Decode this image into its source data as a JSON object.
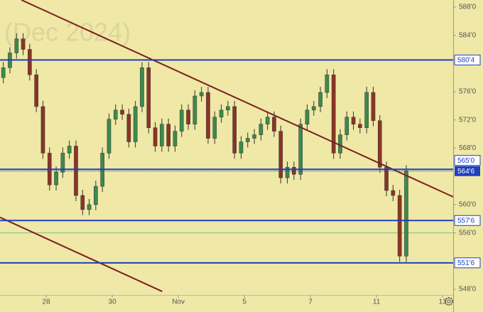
{
  "chart_data": {
    "type": "candlestick",
    "watermark": "(Dec 2024)",
    "xlim": [
      -1.4,
      12.32
    ],
    "xticks": [
      {
        "value": 0,
        "label": "28"
      },
      {
        "value": 2,
        "label": "30"
      },
      {
        "value": 4,
        "label": "Nov"
      },
      {
        "value": 6,
        "label": "5"
      },
      {
        "value": 8,
        "label": "7"
      },
      {
        "value": 10,
        "label": "11"
      },
      {
        "value": 12,
        "label": "13"
      }
    ],
    "ylim": [
      547.2,
      589.0
    ],
    "yticks": [
      {
        "value": 588,
        "label": "588'0"
      },
      {
        "value": 584,
        "label": "584'0"
      },
      {
        "value": 576,
        "label": "576'0"
      },
      {
        "value": 572,
        "label": "572'0"
      },
      {
        "value": 568,
        "label": "568'0"
      },
      {
        "value": 560,
        "label": "560'0"
      },
      {
        "value": 556,
        "label": "556'0"
      },
      {
        "value": 548,
        "label": "548'0"
      }
    ],
    "up_color": "#3d8a4e",
    "down_color": "#8a3526",
    "x": [
      -1.3,
      -1.1,
      -0.9,
      -0.7,
      -0.5,
      -0.3,
      -0.1,
      0.1,
      0.3,
      0.5,
      0.7,
      0.9,
      1.1,
      1.3,
      1.5,
      1.7,
      1.9,
      2.1,
      2.3,
      2.5,
      2.7,
      2.9,
      3.1,
      3.3,
      3.5,
      3.7,
      3.9,
      4.1,
      4.3,
      4.5,
      4.7,
      4.9,
      5.1,
      5.3,
      5.5,
      5.7,
      5.9,
      6.1,
      6.3,
      6.5,
      6.7,
      6.9,
      7.1,
      7.3,
      7.5,
      7.7,
      7.9,
      8.1,
      8.3,
      8.5,
      8.7,
      8.9,
      9.1,
      9.3,
      9.5,
      9.7,
      9.9,
      10.1,
      10.3,
      10.5,
      10.7,
      10.9
    ],
    "open": [
      578.0,
      579.4,
      581.5,
      583.5,
      582.0,
      578.4,
      573.9,
      567.3,
      562.8,
      564.6,
      567.3,
      568.3,
      561.3,
      559.3,
      560.0,
      562.6,
      567.3,
      572.1,
      573.4,
      572.8,
      568.9,
      573.9,
      579.4,
      570.9,
      568.3,
      571.4,
      568.3,
      570.4,
      573.4,
      571.4,
      575.4,
      575.9,
      569.4,
      572.4,
      573.4,
      573.9,
      567.3,
      568.9,
      569.4,
      569.9,
      571.4,
      572.4,
      570.4,
      563.8,
      565.3,
      564.3,
      571.4,
      573.4,
      573.9,
      575.9,
      578.4,
      567.3,
      569.9,
      572.4,
      571.4,
      570.9,
      575.9,
      571.9,
      565.3,
      562.0,
      561.3,
      552.7
    ],
    "high": [
      580.2,
      582.3,
      584.3,
      584.3,
      582.8,
      579.2,
      574.7,
      568.1,
      565.4,
      568.1,
      569.1,
      569.1,
      562.1,
      560.8,
      563.4,
      568.1,
      572.9,
      574.2,
      574.2,
      573.6,
      574.7,
      580.2,
      580.2,
      571.7,
      572.2,
      572.2,
      571.2,
      574.2,
      574.2,
      576.2,
      576.7,
      576.7,
      573.2,
      574.2,
      574.7,
      574.7,
      569.7,
      570.2,
      570.7,
      572.2,
      573.2,
      573.2,
      571.2,
      566.1,
      566.1,
      572.2,
      574.2,
      574.7,
      576.7,
      579.2,
      579.2,
      570.7,
      573.2,
      573.2,
      572.2,
      576.7,
      576.7,
      572.7,
      566.1,
      562.8,
      562.1,
      565.6
    ],
    "low": [
      577.2,
      578.6,
      580.7,
      581.2,
      577.6,
      573.1,
      566.5,
      562.0,
      562.0,
      563.8,
      566.5,
      560.5,
      558.5,
      558.5,
      559.2,
      561.8,
      566.5,
      571.3,
      572.0,
      568.1,
      568.1,
      573.1,
      570.1,
      567.5,
      567.5,
      567.5,
      567.5,
      569.6,
      570.6,
      570.6,
      574.6,
      568.6,
      568.6,
      571.6,
      572.6,
      566.5,
      566.5,
      568.1,
      568.6,
      569.1,
      570.6,
      569.6,
      563.0,
      563.0,
      563.5,
      563.5,
      570.6,
      572.6,
      573.1,
      575.1,
      566.5,
      566.5,
      569.1,
      570.6,
      570.1,
      570.1,
      571.1,
      564.5,
      561.2,
      560.5,
      551.9,
      551.9
    ],
    "close": [
      579.4,
      581.5,
      583.5,
      582.0,
      578.4,
      573.9,
      567.3,
      562.8,
      564.6,
      567.3,
      568.3,
      561.3,
      559.3,
      560.0,
      562.6,
      567.3,
      572.1,
      573.4,
      572.8,
      568.9,
      573.9,
      579.4,
      570.9,
      568.3,
      571.4,
      568.3,
      570.4,
      573.4,
      571.4,
      575.4,
      575.9,
      569.4,
      572.4,
      573.4,
      573.9,
      567.3,
      568.9,
      569.4,
      569.9,
      571.4,
      572.4,
      570.4,
      563.8,
      565.3,
      564.3,
      571.4,
      573.4,
      573.9,
      575.9,
      578.4,
      567.3,
      569.9,
      572.4,
      571.4,
      570.9,
      575.9,
      571.9,
      565.3,
      562.0,
      561.3,
      552.7,
      564.8
    ],
    "levels": [
      {
        "value": 580.5,
        "label": "580'4",
        "color": "#1f3fbf"
      },
      {
        "value": 565,
        "label": "565'0",
        "color": "#1f3fbf"
      },
      {
        "value": 557.75,
        "label": "557'6",
        "color": "#1f3fbf"
      },
      {
        "value": 551.75,
        "label": "551'6",
        "color": "#1f3fbf"
      }
    ],
    "current_price": {
      "value": 564.75,
      "label": "564'6",
      "color": "#1f3fbf"
    },
    "hlines": [
      {
        "value": 556,
        "color": "#7cc47c"
      }
    ],
    "trendlines": [
      {
        "color": "#7a1f1f",
        "x": [
          -0.75,
          12.32
        ],
        "y": [
          589.0,
          561.1
        ]
      },
      {
        "color": "#7a1f1f",
        "x": [
          -1.4,
          3.51
        ],
        "y": [
          558.2,
          547.7
        ]
      }
    ]
  }
}
